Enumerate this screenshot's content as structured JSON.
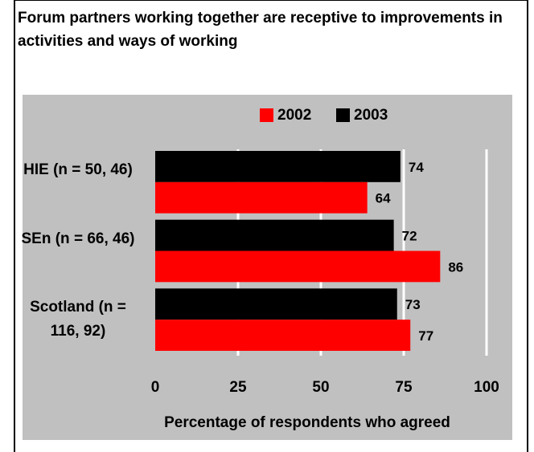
{
  "chart_data": {
    "type": "bar",
    "orientation": "horizontal",
    "title": "Forum partners working together are receptive to improvements in activities and ways of working",
    "categories": [
      "HIE (n = 50, 46)",
      "SEn (n = 66, 46)",
      "Scotland (n = 116, 92)"
    ],
    "series": [
      {
        "name": "2002",
        "color": "#ff0000",
        "values": [
          64,
          86,
          77
        ]
      },
      {
        "name": "2003",
        "color": "#000000",
        "values": [
          74,
          72,
          73
        ]
      }
    ],
    "xlabel": "Percentage of respondents who agreed",
    "xlim": [
      0,
      100
    ],
    "xticks": [
      0,
      25,
      50,
      75,
      100
    ],
    "grid": true,
    "legend": "top"
  }
}
